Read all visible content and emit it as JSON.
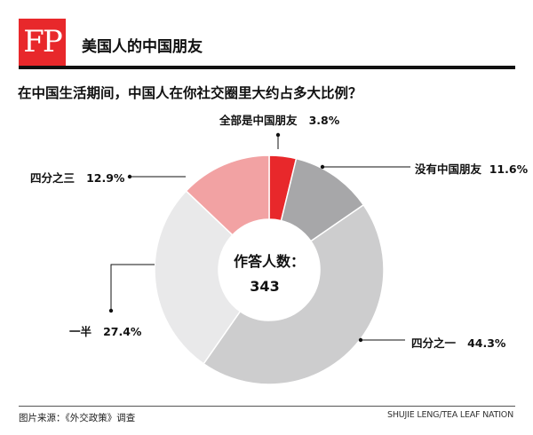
{
  "header": {
    "logo_text": "FP",
    "title": "美国人的中国朋友"
  },
  "chart_data": {
    "type": "pie",
    "title": "在中国生活期间，中国人在你社交圈里大约占多大比例？",
    "center_label": "作答人数：",
    "center_value": "343",
    "slices": [
      {
        "key": "all",
        "label": "全部是中国朋友",
        "value": 3.8,
        "value_text": "3.8%",
        "color": "#e8282b"
      },
      {
        "key": "none",
        "label": "没有中国朋友",
        "value": 11.6,
        "value_text": "11.6%",
        "color": "#a7a7a9"
      },
      {
        "key": "quarter",
        "label": "四分之一",
        "value": 44.3,
        "value_text": "44.3%",
        "color": "#cdcdce"
      },
      {
        "key": "half",
        "label": "一半",
        "value": 27.4,
        "value_text": "27.4%",
        "color": "#e9e9ea"
      },
      {
        "key": "three_quarters",
        "label": "四分之三",
        "value": 12.9,
        "value_text": "12.9%",
        "color": "#f2a2a3"
      }
    ]
  },
  "footer": {
    "source": "图片来源：《外交政策》调查",
    "credit": "SHUJIE LENG/TEA LEAF NATION"
  }
}
